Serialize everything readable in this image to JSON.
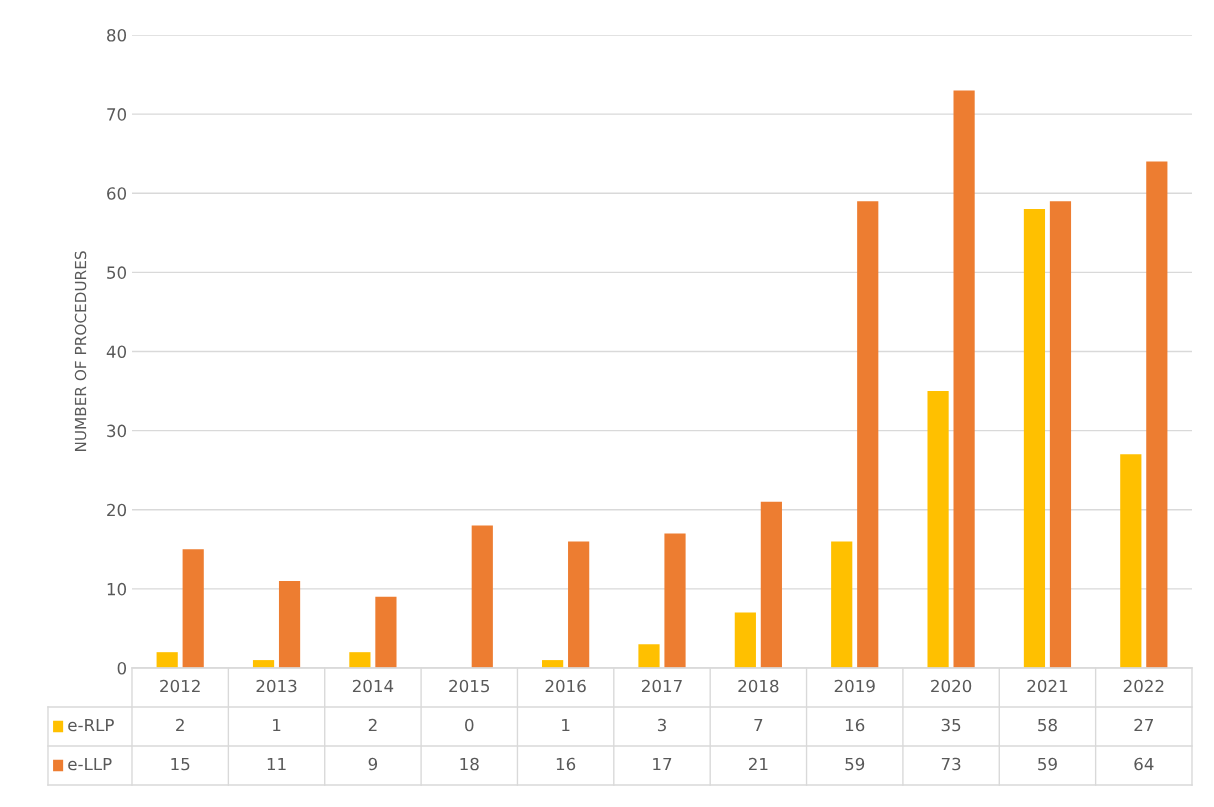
{
  "chart_data": {
    "type": "bar",
    "ylabel": "NUMBER OF PROCEDURES",
    "categories": [
      "2012",
      "2013",
      "2014",
      "2015",
      "2016",
      "2017",
      "2018",
      "2019",
      "2020",
      "2021",
      "2022"
    ],
    "series": [
      {
        "name": "e-RLP",
        "color": "#ffc000",
        "values": [
          2,
          1,
          2,
          0,
          1,
          3,
          7,
          16,
          35,
          58,
          27
        ]
      },
      {
        "name": "e-LLP",
        "color": "#ed7d31",
        "values": [
          15,
          11,
          9,
          18,
          16,
          17,
          21,
          59,
          73,
          59,
          64
        ]
      }
    ],
    "ylim": [
      0,
      80
    ],
    "yticks": [
      0,
      10,
      20,
      30,
      40,
      50,
      60,
      70,
      80
    ],
    "grid": "y",
    "data_labels": true,
    "legend": "bottom"
  }
}
